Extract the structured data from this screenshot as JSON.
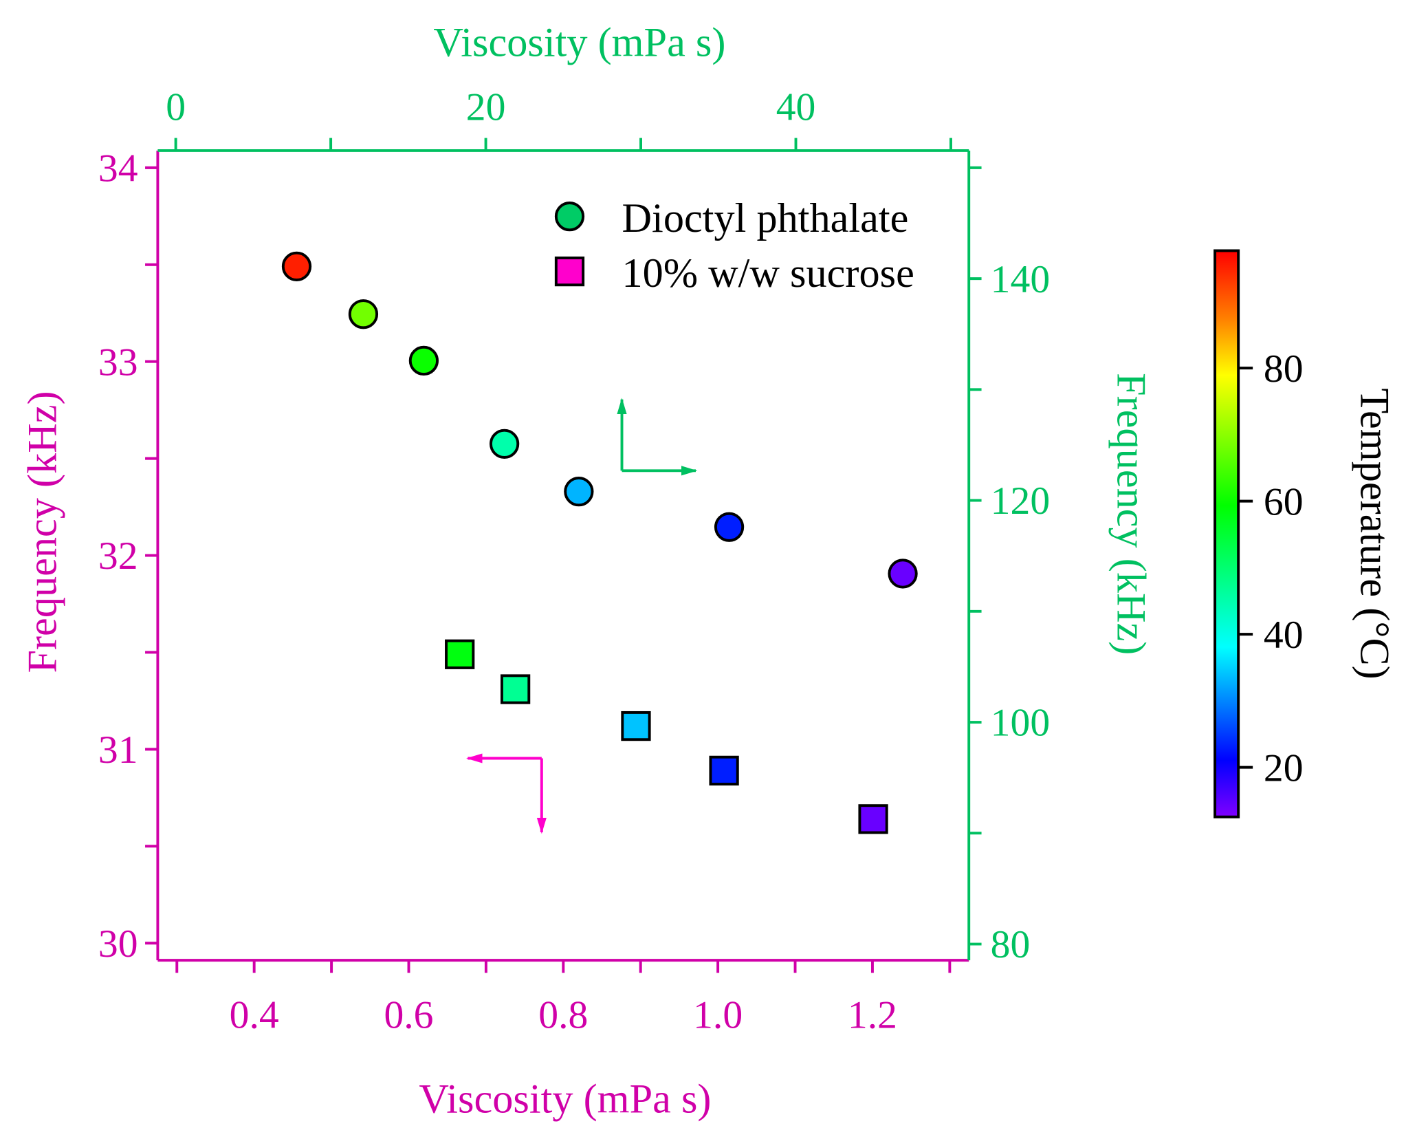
{
  "chart_data": {
    "type": "scatter",
    "colors": {
      "bottom_left_axes": "#d000a8",
      "top_right_axes": "#00c060",
      "legend_circle": "#00cc66",
      "legend_square": "#ff00cc"
    },
    "bottom_axis": {
      "label": "Viscosity (mPa s)",
      "range": [
        0.28,
        1.32
      ],
      "ticks": [
        "0.4",
        "0.6",
        "0.8",
        "1.0",
        "1.2"
      ],
      "tick_values": [
        0.4,
        0.6,
        0.8,
        1.0,
        1.2
      ]
    },
    "left_axis": {
      "label": "Frequency (kHz)",
      "range": [
        29.91,
        34.09
      ],
      "ticks": [
        "30",
        "31",
        "32",
        "33",
        "34"
      ],
      "tick_values": [
        30,
        31,
        32,
        33,
        34
      ]
    },
    "top_axis": {
      "label": "Viscosity (mPa s)",
      "range": [
        -1.2,
        51.2
      ],
      "ticks": [
        "0",
        "20",
        "40"
      ],
      "tick_values": [
        0,
        20,
        40
      ]
    },
    "right_axis": {
      "label": "Frequency (kHz)",
      "range": [
        78.5,
        151.5
      ],
      "ticks": [
        "80",
        "100",
        "120",
        "140"
      ],
      "tick_values": [
        80,
        100,
        120,
        140
      ]
    },
    "colorbar": {
      "label": "Temperature (°C)",
      "range": [
        12.5,
        97.5
      ],
      "ticks": [
        "20",
        "40",
        "60",
        "80"
      ],
      "tick_values": [
        20,
        40,
        60,
        80
      ],
      "colormap": "rainbow"
    },
    "legend": {
      "placement": "top-right",
      "entries": [
        "Dioctyl phthalate",
        "10% w/w sucrose"
      ]
    },
    "series": [
      {
        "name": "Dioctyl phthalate",
        "marker": "circle",
        "axes": "top-right",
        "x": [
          7.8,
          12.1,
          16.0,
          21.2,
          26.0,
          35.7,
          46.9
        ],
        "y": [
          141.1,
          136.8,
          132.6,
          125.1,
          120.8,
          117.6,
          113.4
        ],
        "temperature": [
          95,
          68,
          60,
          45,
          33,
          23,
          14
        ]
      },
      {
        "name": "10% w/w sucrose",
        "marker": "square",
        "axes": "bottom-left",
        "x": [
          0.666,
          0.738,
          0.894,
          1.008,
          1.201
        ],
        "y": [
          31.49,
          31.31,
          31.12,
          30.89,
          30.64
        ],
        "temperature": [
          58,
          47,
          34,
          23,
          14
        ]
      }
    ]
  }
}
